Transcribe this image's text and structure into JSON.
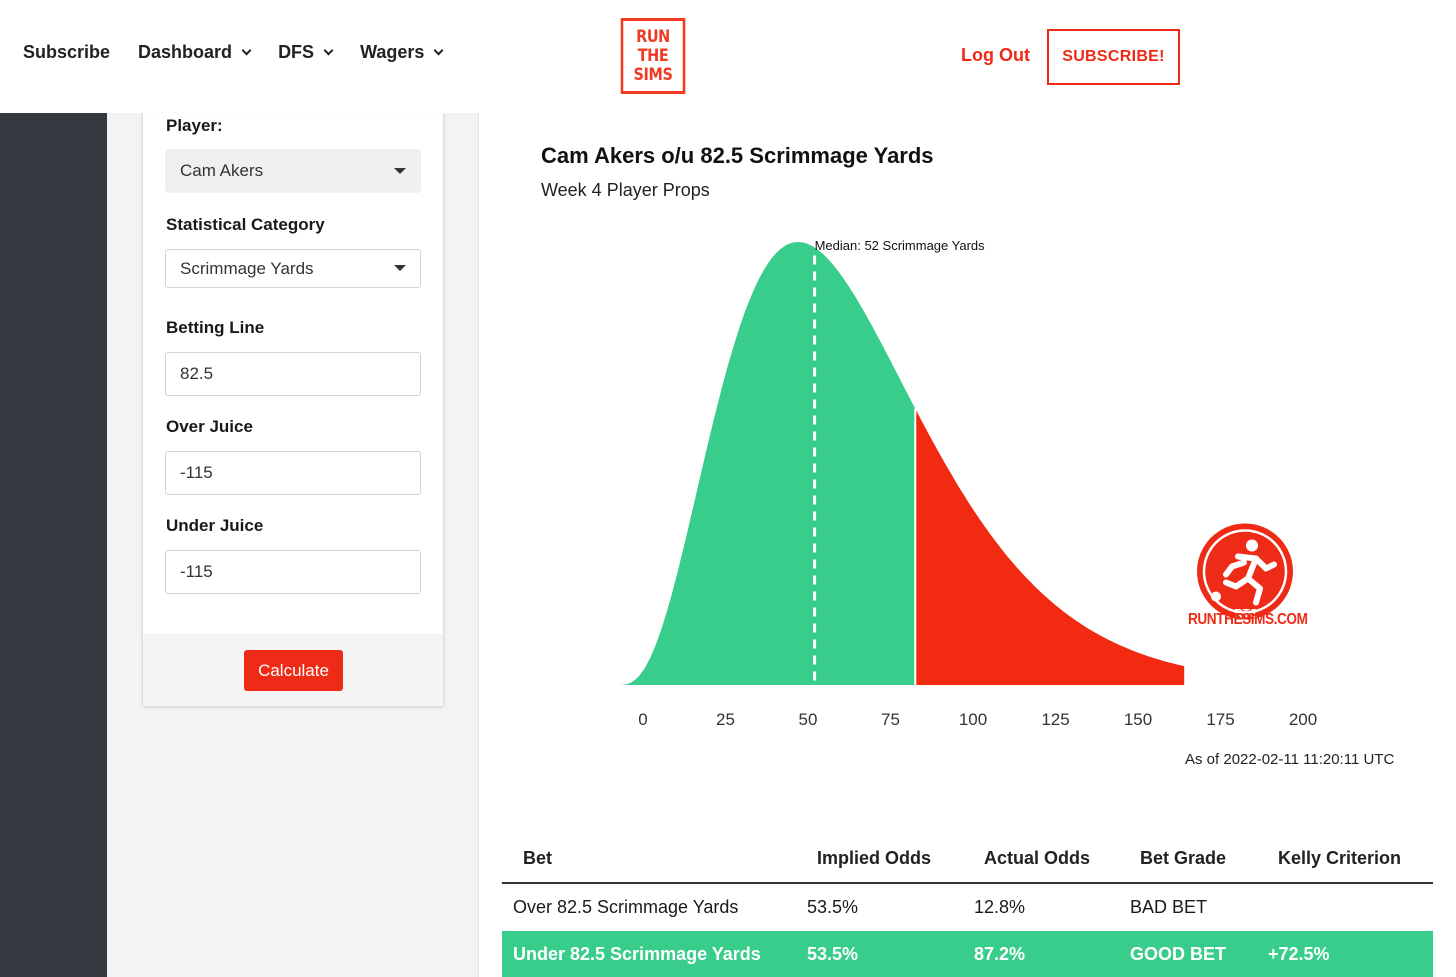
{
  "nav": {
    "items": [
      {
        "label": "Subscribe",
        "dropdown": false
      },
      {
        "label": "Dashboard",
        "dropdown": true
      },
      {
        "label": "DFS",
        "dropdown": true
      },
      {
        "label": "Wagers",
        "dropdown": true
      }
    ],
    "logo_lines": [
      "RUN",
      "THE",
      "SIMS"
    ],
    "logout_label": "Log Out",
    "subscribe_button": "SUBSCRIBE!"
  },
  "form": {
    "player_label": "Player:",
    "player_value": "Cam Akers",
    "category_label": "Statistical Category",
    "category_value": "Scrimmage Yards",
    "line_label": "Betting Line",
    "line_value": "82.5",
    "over_label": "Over Juice",
    "over_value": "-115",
    "under_label": "Under Juice",
    "under_value": "-115",
    "calculate_label": "Calculate"
  },
  "chart": {
    "title": "Cam Akers o/u 82.5 Scrimmage Yards",
    "subtitle": "Week 4 Player Props",
    "as_of": "As of 2022-02-11 11:20:11 UTC",
    "badge_text": "RUNTHESIMS.COM",
    "badge_mark": "RTS"
  },
  "chart_data": {
    "type": "area",
    "title": "Cam Akers o/u 82.5 Scrimmage Yards",
    "subtitle": "Week 4 Player Props",
    "x_ticks": [
      0,
      25,
      50,
      75,
      100,
      125,
      150,
      175,
      200
    ],
    "xlim": [
      -8,
      200
    ],
    "distribution_peak_x": 47,
    "median": 52,
    "median_label": "Median: 52 Scrimmage Yards",
    "betting_line": 82.5,
    "under_color": "#38cd8b",
    "over_color": "#f22a11"
  },
  "table": {
    "headers": [
      "Bet",
      "Implied Odds",
      "Actual Odds",
      "Bet Grade",
      "Kelly Criterion"
    ],
    "rows": [
      {
        "bet": "Over 82.5 Scrimmage Yards",
        "implied": "53.5%",
        "actual": "12.8%",
        "grade": "BAD BET",
        "kelly": ""
      },
      {
        "bet": "Under 82.5 Scrimmage Yards",
        "implied": "53.5%",
        "actual": "87.2%",
        "grade": "GOOD BET",
        "kelly": "+72.5%"
      }
    ]
  },
  "colors": {
    "brand_red": "#ef2a16",
    "good_green": "#38cd8b",
    "sidebar_dark": "#343a40"
  }
}
